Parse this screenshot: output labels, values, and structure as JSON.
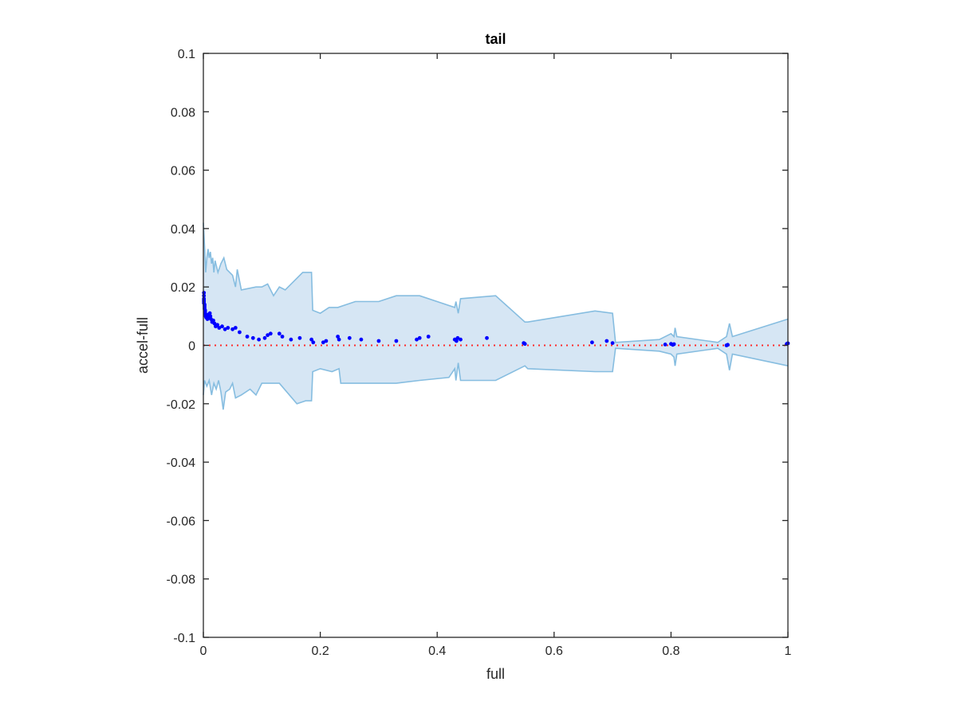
{
  "chart_data": {
    "type": "scatter",
    "title": "tail",
    "xlabel": "full",
    "ylabel": "accel-full",
    "xlim": [
      0,
      1
    ],
    "ylim": [
      -0.1,
      0.1
    ],
    "xticks": [
      0,
      0.2,
      0.4,
      0.6,
      0.8,
      1
    ],
    "xtick_labels": [
      "0",
      "0.2",
      "0.4",
      "0.6",
      "0.8",
      "1"
    ],
    "yticks": [
      0.1,
      0.08,
      0.06,
      0.04,
      0.02,
      0,
      -0.02,
      -0.04,
      -0.06,
      -0.08,
      -0.1
    ],
    "ytick_labels": [
      "0.1",
      "0.08",
      "0.06",
      "0.04",
      "0.02",
      "0",
      "-0.02",
      "-0.04",
      "-0.06",
      "-0.08",
      "-0.1"
    ],
    "grid": false,
    "colors": {
      "points": "#0000ff",
      "band_fill": "#d6e6f4",
      "band_edge": "#86bde0",
      "reference_line": "#ff2a2a",
      "axes": "#262626"
    },
    "reference_line": {
      "y": 0,
      "style": "dotted"
    },
    "band_upper": [
      [
        0,
        0.042
      ],
      [
        0.002,
        0.034
      ],
      [
        0.004,
        0.025
      ],
      [
        0.006,
        0.03
      ],
      [
        0.008,
        0.033
      ],
      [
        0.01,
        0.03
      ],
      [
        0.012,
        0.032
      ],
      [
        0.014,
        0.028
      ],
      [
        0.016,
        0.03
      ],
      [
        0.018,
        0.025
      ],
      [
        0.02,
        0.029
      ],
      [
        0.025,
        0.025
      ],
      [
        0.03,
        0.028
      ],
      [
        0.035,
        0.03
      ],
      [
        0.04,
        0.026
      ],
      [
        0.045,
        0.025
      ],
      [
        0.05,
        0.024
      ],
      [
        0.055,
        0.02
      ],
      [
        0.058,
        0.026
      ],
      [
        0.065,
        0.019
      ],
      [
        0.09,
        0.02
      ],
      [
        0.1,
        0.02
      ],
      [
        0.11,
        0.021
      ],
      [
        0.12,
        0.017
      ],
      [
        0.13,
        0.02
      ],
      [
        0.14,
        0.019
      ],
      [
        0.155,
        0.022
      ],
      [
        0.17,
        0.025
      ],
      [
        0.185,
        0.025
      ],
      [
        0.187,
        0.012
      ],
      [
        0.2,
        0.011
      ],
      [
        0.215,
        0.013
      ],
      [
        0.23,
        0.013
      ],
      [
        0.26,
        0.015
      ],
      [
        0.3,
        0.015
      ],
      [
        0.33,
        0.017
      ],
      [
        0.37,
        0.017
      ],
      [
        0.43,
        0.013
      ],
      [
        0.432,
        0.015
      ],
      [
        0.436,
        0.011
      ],
      [
        0.44,
        0.016
      ],
      [
        0.5,
        0.017
      ],
      [
        0.55,
        0.008
      ],
      [
        0.555,
        0.008
      ],
      [
        0.67,
        0.0118
      ],
      [
        0.7,
        0.011
      ],
      [
        0.705,
        0.001
      ],
      [
        0.78,
        0.002
      ],
      [
        0.8,
        0.004
      ],
      [
        0.805,
        0.003
      ],
      [
        0.807,
        0.006
      ],
      [
        0.81,
        0.003
      ],
      [
        0.88,
        0.001
      ],
      [
        0.895,
        0.003
      ],
      [
        0.9,
        0.0075
      ],
      [
        0.905,
        0.003
      ],
      [
        1,
        0.009
      ]
    ],
    "band_lower": [
      [
        0,
        -0.017
      ],
      [
        0.002,
        -0.012
      ],
      [
        0.006,
        -0.014
      ],
      [
        0.01,
        -0.012
      ],
      [
        0.014,
        -0.017
      ],
      [
        0.018,
        -0.013
      ],
      [
        0.022,
        -0.015
      ],
      [
        0.026,
        -0.012
      ],
      [
        0.03,
        -0.016
      ],
      [
        0.034,
        -0.022
      ],
      [
        0.038,
        -0.016
      ],
      [
        0.045,
        -0.015
      ],
      [
        0.05,
        -0.013
      ],
      [
        0.055,
        -0.018
      ],
      [
        0.065,
        -0.017
      ],
      [
        0.08,
        -0.015
      ],
      [
        0.09,
        -0.017
      ],
      [
        0.1,
        -0.013
      ],
      [
        0.13,
        -0.013
      ],
      [
        0.16,
        -0.02
      ],
      [
        0.175,
        -0.019
      ],
      [
        0.185,
        -0.019
      ],
      [
        0.187,
        -0.009
      ],
      [
        0.2,
        -0.008
      ],
      [
        0.22,
        -0.009
      ],
      [
        0.232,
        -0.008
      ],
      [
        0.235,
        -0.013
      ],
      [
        0.27,
        -0.013
      ],
      [
        0.3,
        -0.013
      ],
      [
        0.33,
        -0.013
      ],
      [
        0.37,
        -0.012
      ],
      [
        0.42,
        -0.011
      ],
      [
        0.43,
        -0.008
      ],
      [
        0.432,
        -0.012
      ],
      [
        0.436,
        -0.006
      ],
      [
        0.44,
        -0.012
      ],
      [
        0.5,
        -0.012
      ],
      [
        0.55,
        -0.007
      ],
      [
        0.555,
        -0.008
      ],
      [
        0.67,
        -0.009
      ],
      [
        0.7,
        -0.009
      ],
      [
        0.705,
        -0.001
      ],
      [
        0.78,
        -0.002
      ],
      [
        0.8,
        -0.003
      ],
      [
        0.805,
        -0.004
      ],
      [
        0.807,
        -0.007
      ],
      [
        0.81,
        -0.003
      ],
      [
        0.88,
        -0.001
      ],
      [
        0.895,
        -0.003
      ],
      [
        0.9,
        -0.0085
      ],
      [
        0.905,
        -0.003
      ],
      [
        1,
        -0.007
      ]
    ],
    "points": [
      [
        0.001,
        0.018
      ],
      [
        0.001,
        0.017
      ],
      [
        0.001,
        0.016
      ],
      [
        0.001,
        0.0155
      ],
      [
        0.001,
        0.015
      ],
      [
        0.001,
        0.0145
      ],
      [
        0.002,
        0.014
      ],
      [
        0.002,
        0.0135
      ],
      [
        0.002,
        0.013
      ],
      [
        0.002,
        0.0125
      ],
      [
        0.003,
        0.012
      ],
      [
        0.003,
        0.0115
      ],
      [
        0.003,
        0.011
      ],
      [
        0.004,
        0.0105
      ],
      [
        0.004,
        0.01
      ],
      [
        0.005,
        0.0095
      ],
      [
        0.006,
        0.01
      ],
      [
        0.007,
        0.009
      ],
      [
        0.008,
        0.0105
      ],
      [
        0.009,
        0.0095
      ],
      [
        0.011,
        0.011
      ],
      [
        0.012,
        0.01
      ],
      [
        0.013,
        0.009
      ],
      [
        0.015,
        0.008
      ],
      [
        0.017,
        0.0085
      ],
      [
        0.019,
        0.0075
      ],
      [
        0.021,
        0.0065
      ],
      [
        0.024,
        0.007
      ],
      [
        0.027,
        0.006
      ],
      [
        0.032,
        0.0065
      ],
      [
        0.037,
        0.0055
      ],
      [
        0.042,
        0.006
      ],
      [
        0.05,
        0.0055
      ],
      [
        0.055,
        0.006
      ],
      [
        0.062,
        0.0045
      ],
      [
        0.075,
        0.003
      ],
      [
        0.085,
        0.0025
      ],
      [
        0.095,
        0.002
      ],
      [
        0.105,
        0.0025
      ],
      [
        0.11,
        0.0035
      ],
      [
        0.115,
        0.004
      ],
      [
        0.13,
        0.004
      ],
      [
        0.135,
        0.003
      ],
      [
        0.15,
        0.002
      ],
      [
        0.165,
        0.0025
      ],
      [
        0.185,
        0.002
      ],
      [
        0.188,
        0.001
      ],
      [
        0.205,
        0.001
      ],
      [
        0.21,
        0.0015
      ],
      [
        0.23,
        0.003
      ],
      [
        0.232,
        0.002
      ],
      [
        0.25,
        0.0025
      ],
      [
        0.27,
        0.002
      ],
      [
        0.3,
        0.0015
      ],
      [
        0.33,
        0.0015
      ],
      [
        0.365,
        0.002
      ],
      [
        0.37,
        0.0025
      ],
      [
        0.385,
        0.003
      ],
      [
        0.43,
        0.002
      ],
      [
        0.433,
        0.0015
      ],
      [
        0.435,
        0.0025
      ],
      [
        0.44,
        0.002
      ],
      [
        0.485,
        0.0025
      ],
      [
        0.548,
        0.0008
      ],
      [
        0.55,
        0.0005
      ],
      [
        0.665,
        0.001
      ],
      [
        0.69,
        0.0015
      ],
      [
        0.7,
        0.0008
      ],
      [
        0.79,
        0.0003
      ],
      [
        0.8,
        0.0005
      ],
      [
        0.803,
        0.0002
      ],
      [
        0.805,
        0.0004
      ],
      [
        0.895,
        0.0
      ],
      [
        0.897,
        0.0002
      ],
      [
        0.998,
        0.0005
      ],
      [
        1.0,
        0.0007
      ]
    ]
  }
}
